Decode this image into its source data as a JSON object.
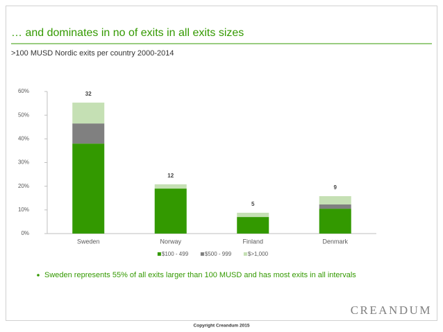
{
  "header": {
    "title": "… and dominates in no of exits in all exits sizes",
    "subtitle": ">100 MUSD Nordic exits per country 2000-2014"
  },
  "chart_data": {
    "type": "bar",
    "stacked": true,
    "categories": [
      "Sweden",
      "Norway",
      "Finland",
      "Denmark"
    ],
    "series": [
      {
        "name": "$100 - 499",
        "color": "#339900",
        "values": [
          38,
          19,
          7,
          10.5
        ]
      },
      {
        "name": "$500 - 999",
        "color": "#808080",
        "values": [
          8.5,
          0,
          0,
          1.8
        ]
      },
      {
        "name": "$>1,000",
        "color": "#c5e0b4",
        "values": [
          8.8,
          1.8,
          1.8,
          3.5
        ]
      }
    ],
    "count_labels": [
      32,
      12,
      5,
      9
    ],
    "ylim": [
      0,
      60
    ],
    "yticks": [
      {
        "value": 0,
        "label": "0%"
      },
      {
        "value": 10,
        "label": "10%"
      },
      {
        "value": 20,
        "label": "20%"
      },
      {
        "value": 30,
        "label": "30%"
      },
      {
        "value": 40,
        "label": "40%"
      },
      {
        "value": 50,
        "label": "50%"
      },
      {
        "value": 60,
        "label": "60%"
      }
    ],
    "legend": "bottom",
    "grid": false
  },
  "bullet": "Sweden represents 55% of all exits larger than 100 MUSD and has most exits in all intervals",
  "logo": "CREANDUM",
  "footer": "Copyright Creandum 2015"
}
